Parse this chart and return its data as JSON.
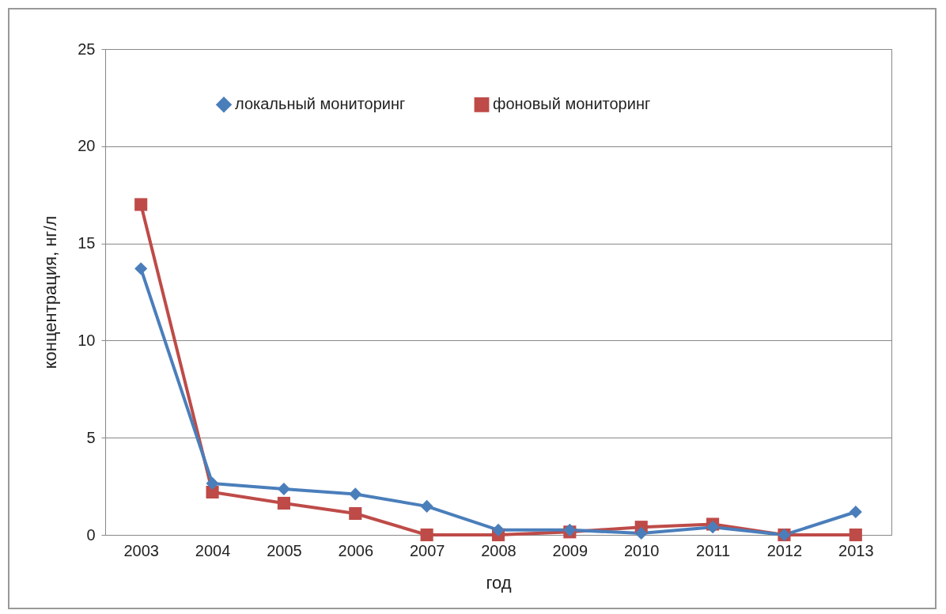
{
  "chart_data": {
    "type": "line",
    "xlabel": "год",
    "ylabel": "концентрация, нг/л",
    "categories": [
      "2003",
      "2004",
      "2005",
      "2006",
      "2007",
      "2008",
      "2009",
      "2010",
      "2011",
      "2012",
      "2013"
    ],
    "series": [
      {
        "name": "локальный мониторинг",
        "color": "#4a7ebb",
        "marker": "diamond",
        "values": [
          13.7,
          2.65,
          2.36,
          2.1,
          1.47,
          0.25,
          0.25,
          0.08,
          0.4,
          0,
          1.18
        ]
      },
      {
        "name": "фоновый мониторинг",
        "color": "#be4b48",
        "marker": "square",
        "values": [
          17.0,
          2.2,
          1.63,
          1.1,
          0,
          0,
          0.15,
          0.4,
          0.55,
          0,
          0
        ]
      }
    ],
    "ylim": [
      0,
      25
    ],
    "yticks": [
      0,
      5,
      10,
      15,
      20,
      25
    ],
    "grid": "y",
    "legend": "top",
    "line_style": "solid"
  }
}
